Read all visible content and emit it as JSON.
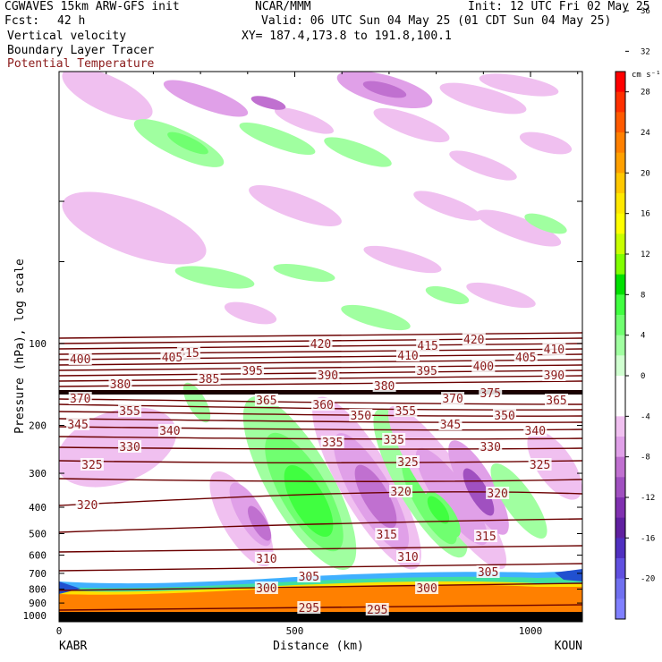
{
  "header": {
    "model": "CGWAVES 15km ARW-GFS init",
    "org": "NCAR/MMM",
    "init": "Init: 12 UTC Fri 02 May 25",
    "fcst_label": "Fcst:",
    "fcst_value": "42 h",
    "valid": "Valid: 06 UTC Sun 04 May 25 (01 CDT Sun 04 May 25)",
    "field1": "Vertical velocity",
    "xy": "XY= 187.4,173.8 to 191.8,100.1",
    "field2": "Boundary Layer Tracer",
    "field3": "Potential Temperature"
  },
  "colors": {
    "theta": "#6b0000",
    "theta_label": "#8b1a1a"
  },
  "chart_data": {
    "type": "contour",
    "xlabel": "Distance (km)",
    "ylabel": "Pressure (hPa), log scale",
    "x_ticks": [
      "0",
      "500",
      "1000"
    ],
    "x_tick_values": [
      0,
      500,
      1000
    ],
    "xlim": [
      0,
      1110
    ],
    "y_ticks": [
      "100",
      "200",
      "300",
      "400",
      "500",
      "600",
      "700",
      "800",
      "900",
      "1000"
    ],
    "y_tick_values": [
      100,
      200,
      300,
      400,
      500,
      600,
      700,
      800,
      900,
      1000
    ],
    "y_scale": "log",
    "left_station": "KABR",
    "right_station": "KOUN",
    "colorbar": {
      "unit": "cm s⁻¹",
      "labels": [
        "36",
        "32",
        "28",
        "24",
        "20",
        "16",
        "12",
        "8",
        "4",
        "0",
        "-4",
        "-8",
        "-12",
        "-16",
        "-20"
      ],
      "values": [
        36,
        32,
        28,
        24,
        20,
        16,
        12,
        8,
        4,
        0,
        -4,
        -8,
        -12,
        -16,
        -20
      ],
      "colors": [
        "#ff0000",
        "#ff3000",
        "#ff5a00",
        "#ff8000",
        "#ffa000",
        "#ffc800",
        "#ffe800",
        "#ffff00",
        "#c8ff00",
        "#80ff00",
        "#00e000",
        "#40ff40",
        "#70ff70",
        "#a0ffa0",
        "#d0ffd0",
        "#ffffff",
        "#ffffff",
        "#f0c0f0",
        "#e0a0e8",
        "#c070d0",
        "#a050c0",
        "#8030b0",
        "#6020a0",
        "#5030c0",
        "#6050e0",
        "#7070f0",
        "#8080ff"
      ]
    },
    "theta_labels": [
      {
        "t": "415",
        "px": 395,
        "dx": 275
      },
      {
        "t": "420",
        "px": 385,
        "dx": 555
      },
      {
        "t": "410",
        "px": 398,
        "dx": 740
      },
      {
        "t": "415",
        "px": 387,
        "dx": 782
      },
      {
        "t": "420",
        "px": 380,
        "dx": 880
      },
      {
        "t": "410",
        "px": 391,
        "dx": 1050
      },
      {
        "t": "400",
        "px": 402,
        "dx": 45
      },
      {
        "t": "405",
        "px": 400,
        "dx": 240
      },
      {
        "t": "395",
        "px": 415,
        "dx": 410
      },
      {
        "t": "405",
        "px": 400,
        "dx": 990
      },
      {
        "t": "380",
        "px": 430,
        "dx": 130
      },
      {
        "t": "385",
        "px": 424,
        "dx": 318
      },
      {
        "t": "390",
        "px": 420,
        "dx": 570
      },
      {
        "t": "395",
        "px": 415,
        "dx": 780
      },
      {
        "t": "400",
        "px": 410,
        "dx": 900
      },
      {
        "t": "390",
        "px": 420,
        "dx": 1050
      },
      {
        "t": "370",
        "px": 446,
        "dx": 45
      },
      {
        "t": "365",
        "px": 448,
        "dx": 440
      },
      {
        "t": "380",
        "px": 432,
        "dx": 690
      },
      {
        "t": "370",
        "px": 446,
        "dx": 835
      },
      {
        "t": "375",
        "px": 440,
        "dx": 915
      },
      {
        "t": "365",
        "px": 448,
        "dx": 1055
      },
      {
        "t": "355",
        "px": 460,
        "dx": 150
      },
      {
        "t": "360",
        "px": 453,
        "dx": 560
      },
      {
        "t": "350",
        "px": 465,
        "dx": 640
      },
      {
        "t": "355",
        "px": 460,
        "dx": 735
      },
      {
        "t": "345",
        "px": 475,
        "dx": 830
      },
      {
        "t": "350",
        "px": 465,
        "dx": 945
      },
      {
        "t": "345",
        "px": 475,
        "dx": 40
      },
      {
        "t": "340",
        "px": 482,
        "dx": 235
      },
      {
        "t": "340",
        "px": 482,
        "dx": 1010
      },
      {
        "t": "335",
        "px": 495,
        "dx": 580
      },
      {
        "t": "335",
        "px": 492,
        "dx": 710
      },
      {
        "t": "330",
        "px": 500,
        "dx": 150
      },
      {
        "t": "330",
        "px": 500,
        "dx": 915
      },
      {
        "t": "325",
        "px": 520,
        "dx": 70
      },
      {
        "t": "325",
        "px": 517,
        "dx": 740
      },
      {
        "t": "325",
        "px": 520,
        "dx": 1020
      },
      {
        "t": "320",
        "px": 565,
        "dx": 60
      },
      {
        "t": "320",
        "px": 550,
        "dx": 725
      },
      {
        "t": "320",
        "px": 552,
        "dx": 930
      },
      {
        "t": "315",
        "px": 598,
        "dx": 695
      },
      {
        "t": "315",
        "px": 600,
        "dx": 905
      },
      {
        "t": "310",
        "px": 625,
        "dx": 440
      },
      {
        "t": "310",
        "px": 623,
        "dx": 740
      },
      {
        "t": "305",
        "px": 645,
        "dx": 530
      },
      {
        "t": "305",
        "px": 640,
        "dx": 910
      },
      {
        "t": "300",
        "px": 658,
        "dx": 440
      },
      {
        "t": "300",
        "px": 658,
        "dx": 780
      },
      {
        "t": "295",
        "px": 680,
        "dx": 530
      },
      {
        "t": "295",
        "px": 682,
        "dx": 675
      }
    ]
  }
}
